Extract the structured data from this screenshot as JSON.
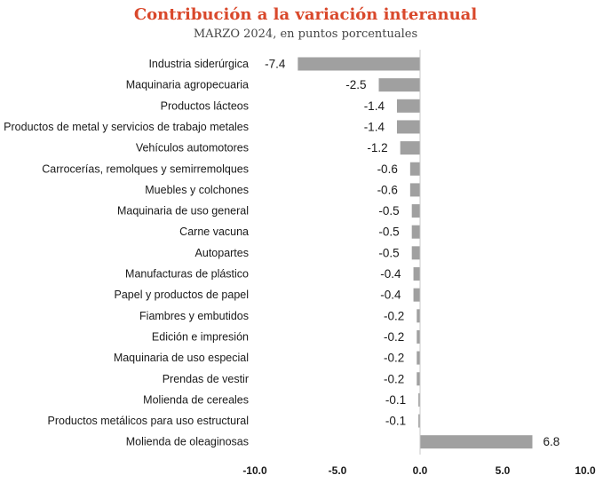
{
  "chart_data": {
    "type": "bar",
    "orientation": "horizontal",
    "title": "Contribución a la variación interanual",
    "subtitle": "MARZO 2024, en puntos porcentuales",
    "categories": [
      "Industria siderúrgica",
      "Maquinaria agropecuaria",
      "Productos lácteos",
      "Productos de metal y servicios de trabajo metales",
      "Vehículos automotores",
      "Carrocerías, remolques y semirremolques",
      "Muebles y colchones",
      "Maquinaria de uso general",
      "Carne vacuna",
      "Autopartes",
      "Manufacturas de plástico",
      "Papel y productos de papel",
      "Fiambres y embutidos",
      "Edición e impresión",
      "Maquinaria de uso especial",
      "Prendas de vestir",
      "Molienda de cereales",
      "Productos metálicos para uso estructural",
      "Molienda de oleaginosas"
    ],
    "values": [
      -7.4,
      -2.5,
      -1.4,
      -1.4,
      -1.2,
      -0.6,
      -0.6,
      -0.5,
      -0.5,
      -0.5,
      -0.4,
      -0.4,
      -0.2,
      -0.2,
      -0.2,
      -0.2,
      -0.1,
      -0.1,
      6.8
    ],
    "value_labels": [
      "-7.4",
      "-2.5",
      "-1.4",
      "-1.4",
      "-1.2",
      "-0.6",
      "-0.6",
      "-0.5",
      "-0.5",
      "-0.5",
      "-0.4",
      "-0.4",
      "-0.2",
      "-0.2",
      "-0.2",
      "-0.2",
      "-0.1",
      "-0.1",
      "6.8"
    ],
    "xlim": [
      -10,
      10
    ],
    "xticks": [
      -10,
      -5,
      0,
      5,
      10
    ],
    "xtick_labels": [
      "-10.0",
      "-5.0",
      "0.0",
      "5.0",
      "10.0"
    ],
    "bar_color": "#a0a0a0",
    "title_color": "#d9482b",
    "grid": false,
    "legend": "none"
  }
}
